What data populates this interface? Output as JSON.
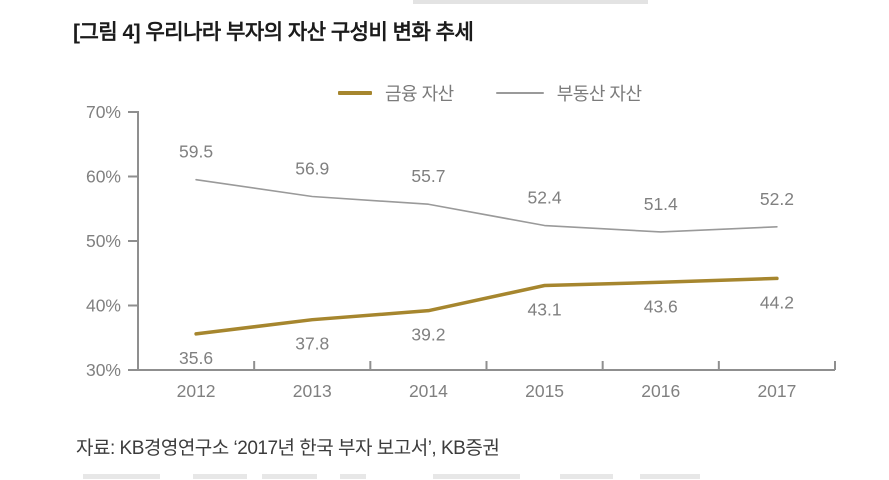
{
  "page": {
    "title": "[그림 4] 우리나라 부자의 자산 구성비 변화 추세",
    "source": "자료: KB경영연구소 ‘2017년 한국 부자 보고서’, KB증권"
  },
  "chart_data": {
    "type": "line",
    "title": "[그림 4] 우리나라 부자의 자산 구성비 변화 추세",
    "categories": [
      "2012",
      "2013",
      "2014",
      "2015",
      "2016",
      "2017"
    ],
    "series": [
      {
        "name": "금융 자산",
        "values": [
          35.6,
          37.8,
          39.2,
          43.1,
          43.6,
          44.2
        ],
        "color": "#a6862e",
        "stroke_width": 3.5,
        "label_position": "below"
      },
      {
        "name": "부동산 자산",
        "values": [
          59.5,
          56.9,
          55.7,
          52.4,
          51.4,
          52.2
        ],
        "color": "#9a9a9a",
        "stroke_width": 1.6,
        "label_position": "above"
      }
    ],
    "xlabel": "",
    "ylabel": "",
    "ylim": [
      30,
      70
    ],
    "ytick_step": 10,
    "ytick_suffix": "%",
    "grid": false,
    "legend_position": "top-center",
    "axis_color": "#8f8f8f",
    "label_color": "#808080",
    "source": "자료: KB경영연구소 ‘2017년 한국 부자 보고서’, KB증권"
  }
}
